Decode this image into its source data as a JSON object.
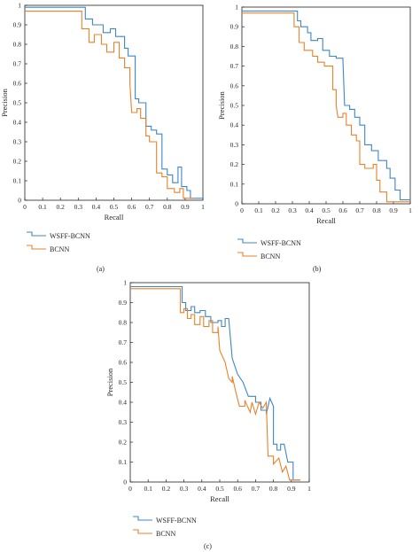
{
  "chart_data": [
    {
      "type": "line",
      "panel": "(a)",
      "xlabel": "Recall",
      "ylabel": "Precision",
      "xlim": [
        0,
        1
      ],
      "ylim": [
        0,
        1
      ],
      "x_ticks": [
        "0",
        "0.1",
        "0.2",
        "0.3",
        "0.4",
        "0.5",
        "0.6",
        "0.7",
        "0.8",
        "0.9",
        "1"
      ],
      "y_ticks": [
        "0",
        "0.1",
        "0.2",
        "0.3",
        "0.4",
        "0.5",
        "0.6",
        "0.7",
        "0.8",
        "0.9",
        "1"
      ],
      "grid": false,
      "legend_position": "below-left",
      "series": [
        {
          "name": "WSFF-BCNN",
          "color": "#3d87c8",
          "points": [
            [
              0,
              0.99
            ],
            [
              0.34,
              0.99
            ],
            [
              0.34,
              0.93
            ],
            [
              0.38,
              0.93
            ],
            [
              0.38,
              0.9
            ],
            [
              0.44,
              0.9
            ],
            [
              0.44,
              0.86
            ],
            [
              0.48,
              0.86
            ],
            [
              0.48,
              0.88
            ],
            [
              0.51,
              0.88
            ],
            [
              0.51,
              0.84
            ],
            [
              0.56,
              0.84
            ],
            [
              0.56,
              0.78
            ],
            [
              0.58,
              0.78
            ],
            [
              0.58,
              0.74
            ],
            [
              0.62,
              0.74
            ],
            [
              0.62,
              0.52
            ],
            [
              0.64,
              0.52
            ],
            [
              0.64,
              0.5
            ],
            [
              0.68,
              0.5
            ],
            [
              0.68,
              0.38
            ],
            [
              0.71,
              0.38
            ],
            [
              0.71,
              0.36
            ],
            [
              0.74,
              0.36
            ],
            [
              0.74,
              0.34
            ],
            [
              0.77,
              0.34
            ],
            [
              0.77,
              0.16
            ],
            [
              0.8,
              0.16
            ],
            [
              0.8,
              0.13
            ],
            [
              0.83,
              0.13
            ],
            [
              0.83,
              0.09
            ],
            [
              0.86,
              0.09
            ],
            [
              0.86,
              0.17
            ],
            [
              0.88,
              0.17
            ],
            [
              0.88,
              0.07
            ],
            [
              0.91,
              0.07
            ],
            [
              0.91,
              0.05
            ],
            [
              0.93,
              0.05
            ],
            [
              0.93,
              0.01
            ],
            [
              1,
              0.01
            ]
          ]
        },
        {
          "name": "BCNN",
          "color": "#e8822a",
          "points": [
            [
              0,
              0.97
            ],
            [
              0.32,
              0.97
            ],
            [
              0.32,
              0.88
            ],
            [
              0.36,
              0.88
            ],
            [
              0.36,
              0.81
            ],
            [
              0.39,
              0.81
            ],
            [
              0.39,
              0.85
            ],
            [
              0.43,
              0.85
            ],
            [
              0.43,
              0.8
            ],
            [
              0.46,
              0.8
            ],
            [
              0.46,
              0.76
            ],
            [
              0.5,
              0.76
            ],
            [
              0.5,
              0.81
            ],
            [
              0.53,
              0.81
            ],
            [
              0.53,
              0.73
            ],
            [
              0.56,
              0.73
            ],
            [
              0.56,
              0.68
            ],
            [
              0.59,
              0.68
            ],
            [
              0.59,
              0.6
            ],
            [
              0.6,
              0.45
            ],
            [
              0.63,
              0.45
            ],
            [
              0.63,
              0.47
            ],
            [
              0.65,
              0.47
            ],
            [
              0.65,
              0.42
            ],
            [
              0.68,
              0.42
            ],
            [
              0.68,
              0.33
            ],
            [
              0.7,
              0.33
            ],
            [
              0.7,
              0.3
            ],
            [
              0.74,
              0.3
            ],
            [
              0.74,
              0.14
            ],
            [
              0.77,
              0.14
            ],
            [
              0.77,
              0.12
            ],
            [
              0.8,
              0.12
            ],
            [
              0.8,
              0.06
            ],
            [
              0.84,
              0.06
            ],
            [
              0.84,
              0.04
            ],
            [
              0.87,
              0.04
            ],
            [
              0.87,
              0.06
            ],
            [
              0.89,
              0.06
            ],
            [
              0.89,
              0.01
            ],
            [
              0.95,
              0.01
            ]
          ]
        }
      ]
    },
    {
      "type": "line",
      "panel": "(b)",
      "xlabel": "Recall",
      "ylabel": "Precision",
      "xlim": [
        0,
        1
      ],
      "ylim": [
        0,
        1
      ],
      "x_ticks": [
        "0",
        "0.1",
        "0.2",
        "0.3",
        "0.4",
        "0.5",
        "0.6",
        "0.7",
        "0.8",
        "0.9",
        "1"
      ],
      "y_ticks": [
        "0",
        "0.1",
        "0.2",
        "0.3",
        "0.4",
        "0.5",
        "0.6",
        "0.7",
        "0.8",
        "0.9",
        "1"
      ],
      "grid": false,
      "legend_position": "below-left",
      "series": [
        {
          "name": "WSFF-BCNN",
          "color": "#3d87c8",
          "points": [
            [
              0,
              0.98
            ],
            [
              0.33,
              0.98
            ],
            [
              0.33,
              0.93
            ],
            [
              0.35,
              0.93
            ],
            [
              0.35,
              0.9
            ],
            [
              0.39,
              0.9
            ],
            [
              0.39,
              0.87
            ],
            [
              0.41,
              0.87
            ],
            [
              0.41,
              0.83
            ],
            [
              0.45,
              0.83
            ],
            [
              0.45,
              0.84
            ],
            [
              0.48,
              0.84
            ],
            [
              0.48,
              0.78
            ],
            [
              0.52,
              0.78
            ],
            [
              0.52,
              0.75
            ],
            [
              0.56,
              0.75
            ],
            [
              0.56,
              0.74
            ],
            [
              0.6,
              0.74
            ],
            [
              0.6,
              0.73
            ],
            [
              0.61,
              0.5
            ],
            [
              0.64,
              0.5
            ],
            [
              0.64,
              0.48
            ],
            [
              0.67,
              0.48
            ],
            [
              0.67,
              0.44
            ],
            [
              0.7,
              0.44
            ],
            [
              0.7,
              0.4
            ],
            [
              0.73,
              0.4
            ],
            [
              0.73,
              0.3
            ],
            [
              0.77,
              0.3
            ],
            [
              0.77,
              0.27
            ],
            [
              0.81,
              0.27
            ],
            [
              0.81,
              0.22
            ],
            [
              0.86,
              0.22
            ],
            [
              0.86,
              0.18
            ],
            [
              0.88,
              0.18
            ],
            [
              0.88,
              0.13
            ],
            [
              0.91,
              0.13
            ],
            [
              0.91,
              0.07
            ],
            [
              0.94,
              0.07
            ],
            [
              0.94,
              0.02
            ],
            [
              1,
              0.02
            ]
          ]
        },
        {
          "name": "BCNN",
          "color": "#e8822a",
          "points": [
            [
              0,
              0.97
            ],
            [
              0.31,
              0.97
            ],
            [
              0.31,
              0.9
            ],
            [
              0.34,
              0.9
            ],
            [
              0.34,
              0.82
            ],
            [
              0.37,
              0.82
            ],
            [
              0.37,
              0.78
            ],
            [
              0.42,
              0.78
            ],
            [
              0.42,
              0.75
            ],
            [
              0.45,
              0.75
            ],
            [
              0.45,
              0.72
            ],
            [
              0.49,
              0.72
            ],
            [
              0.49,
              0.7
            ],
            [
              0.54,
              0.7
            ],
            [
              0.54,
              0.58
            ],
            [
              0.56,
              0.58
            ],
            [
              0.56,
              0.5
            ],
            [
              0.57,
              0.44
            ],
            [
              0.6,
              0.44
            ],
            [
              0.6,
              0.46
            ],
            [
              0.62,
              0.46
            ],
            [
              0.62,
              0.4
            ],
            [
              0.65,
              0.4
            ],
            [
              0.65,
              0.35
            ],
            [
              0.68,
              0.35
            ],
            [
              0.68,
              0.32
            ],
            [
              0.7,
              0.32
            ],
            [
              0.7,
              0.2
            ],
            [
              0.73,
              0.2
            ],
            [
              0.73,
              0.18
            ],
            [
              0.78,
              0.18
            ],
            [
              0.78,
              0.2
            ],
            [
              0.8,
              0.2
            ],
            [
              0.8,
              0.12
            ],
            [
              0.82,
              0.12
            ],
            [
              0.82,
              0.06
            ],
            [
              0.86,
              0.06
            ],
            [
              0.86,
              0.01
            ],
            [
              1,
              0.01
            ]
          ]
        }
      ]
    },
    {
      "type": "line",
      "panel": "(c)",
      "xlabel": "Recall",
      "ylabel": "Precision",
      "xlim": [
        0,
        1
      ],
      "ylim": [
        0,
        1
      ],
      "x_ticks": [
        "0",
        "0.1",
        "0.2",
        "0.3",
        "0.4",
        "0.5",
        "0.6",
        "0.7",
        "0.8",
        "0.9",
        "1"
      ],
      "y_ticks": [
        "0",
        "0.1",
        "0.2",
        "0.3",
        "0.4",
        "0.5",
        "0.6",
        "0.7",
        "0.8",
        "0.9",
        "1"
      ],
      "grid": false,
      "legend_position": "below-left",
      "series": [
        {
          "name": "WSFF-BCNN",
          "color": "#3d87c8",
          "points": [
            [
              0,
              0.98
            ],
            [
              0.29,
              0.98
            ],
            [
              0.29,
              0.9
            ],
            [
              0.31,
              0.9
            ],
            [
              0.31,
              0.86
            ],
            [
              0.34,
              0.86
            ],
            [
              0.34,
              0.88
            ],
            [
              0.36,
              0.88
            ],
            [
              0.36,
              0.85
            ],
            [
              0.39,
              0.85
            ],
            [
              0.39,
              0.86
            ],
            [
              0.42,
              0.86
            ],
            [
              0.42,
              0.83
            ],
            [
              0.45,
              0.83
            ],
            [
              0.45,
              0.8
            ],
            [
              0.49,
              0.8
            ],
            [
              0.49,
              0.81
            ],
            [
              0.51,
              0.81
            ],
            [
              0.51,
              0.78
            ],
            [
              0.53,
              0.78
            ],
            [
              0.53,
              0.82
            ],
            [
              0.55,
              0.82
            ],
            [
              0.57,
              0.62
            ],
            [
              0.6,
              0.54
            ],
            [
              0.63,
              0.5
            ],
            [
              0.66,
              0.43
            ],
            [
              0.7,
              0.43
            ],
            [
              0.7,
              0.4
            ],
            [
              0.73,
              0.4
            ],
            [
              0.73,
              0.36
            ],
            [
              0.76,
              0.36
            ],
            [
              0.76,
              0.34
            ],
            [
              0.78,
              0.42
            ],
            [
              0.8,
              0.38
            ],
            [
              0.8,
              0.19
            ],
            [
              0.82,
              0.19
            ],
            [
              0.82,
              0.16
            ],
            [
              0.84,
              0.16
            ],
            [
              0.84,
              0.19
            ],
            [
              0.86,
              0.19
            ],
            [
              0.88,
              0.1
            ],
            [
              0.91,
              0.1
            ],
            [
              0.91,
              0.01
            ],
            [
              0.95,
              0.01
            ]
          ]
        },
        {
          "name": "BCNN",
          "color": "#e8822a",
          "points": [
            [
              0,
              0.97
            ],
            [
              0.28,
              0.97
            ],
            [
              0.28,
              0.85
            ],
            [
              0.3,
              0.85
            ],
            [
              0.3,
              0.87
            ],
            [
              0.32,
              0.87
            ],
            [
              0.32,
              0.82
            ],
            [
              0.34,
              0.82
            ],
            [
              0.34,
              0.84
            ],
            [
              0.36,
              0.84
            ],
            [
              0.36,
              0.79
            ],
            [
              0.39,
              0.79
            ],
            [
              0.39,
              0.83
            ],
            [
              0.41,
              0.83
            ],
            [
              0.41,
              0.78
            ],
            [
              0.44,
              0.78
            ],
            [
              0.44,
              0.81
            ],
            [
              0.46,
              0.81
            ],
            [
              0.46,
              0.75
            ],
            [
              0.49,
              0.75
            ],
            [
              0.49,
              0.78
            ],
            [
              0.5,
              0.66
            ],
            [
              0.53,
              0.6
            ],
            [
              0.55,
              0.52
            ],
            [
              0.57,
              0.5
            ],
            [
              0.57,
              0.53
            ],
            [
              0.59,
              0.45
            ],
            [
              0.61,
              0.38
            ],
            [
              0.64,
              0.38
            ],
            [
              0.64,
              0.41
            ],
            [
              0.67,
              0.35
            ],
            [
              0.68,
              0.4
            ],
            [
              0.7,
              0.34
            ],
            [
              0.72,
              0.4
            ],
            [
              0.74,
              0.37
            ],
            [
              0.76,
              0.4
            ],
            [
              0.77,
              0.13
            ],
            [
              0.8,
              0.13
            ],
            [
              0.8,
              0.09
            ],
            [
              0.83,
              0.12
            ],
            [
              0.85,
              0.05
            ],
            [
              0.87,
              0.08
            ],
            [
              0.89,
              0.01
            ],
            [
              0.95,
              0.01
            ]
          ]
        }
      ]
    }
  ]
}
